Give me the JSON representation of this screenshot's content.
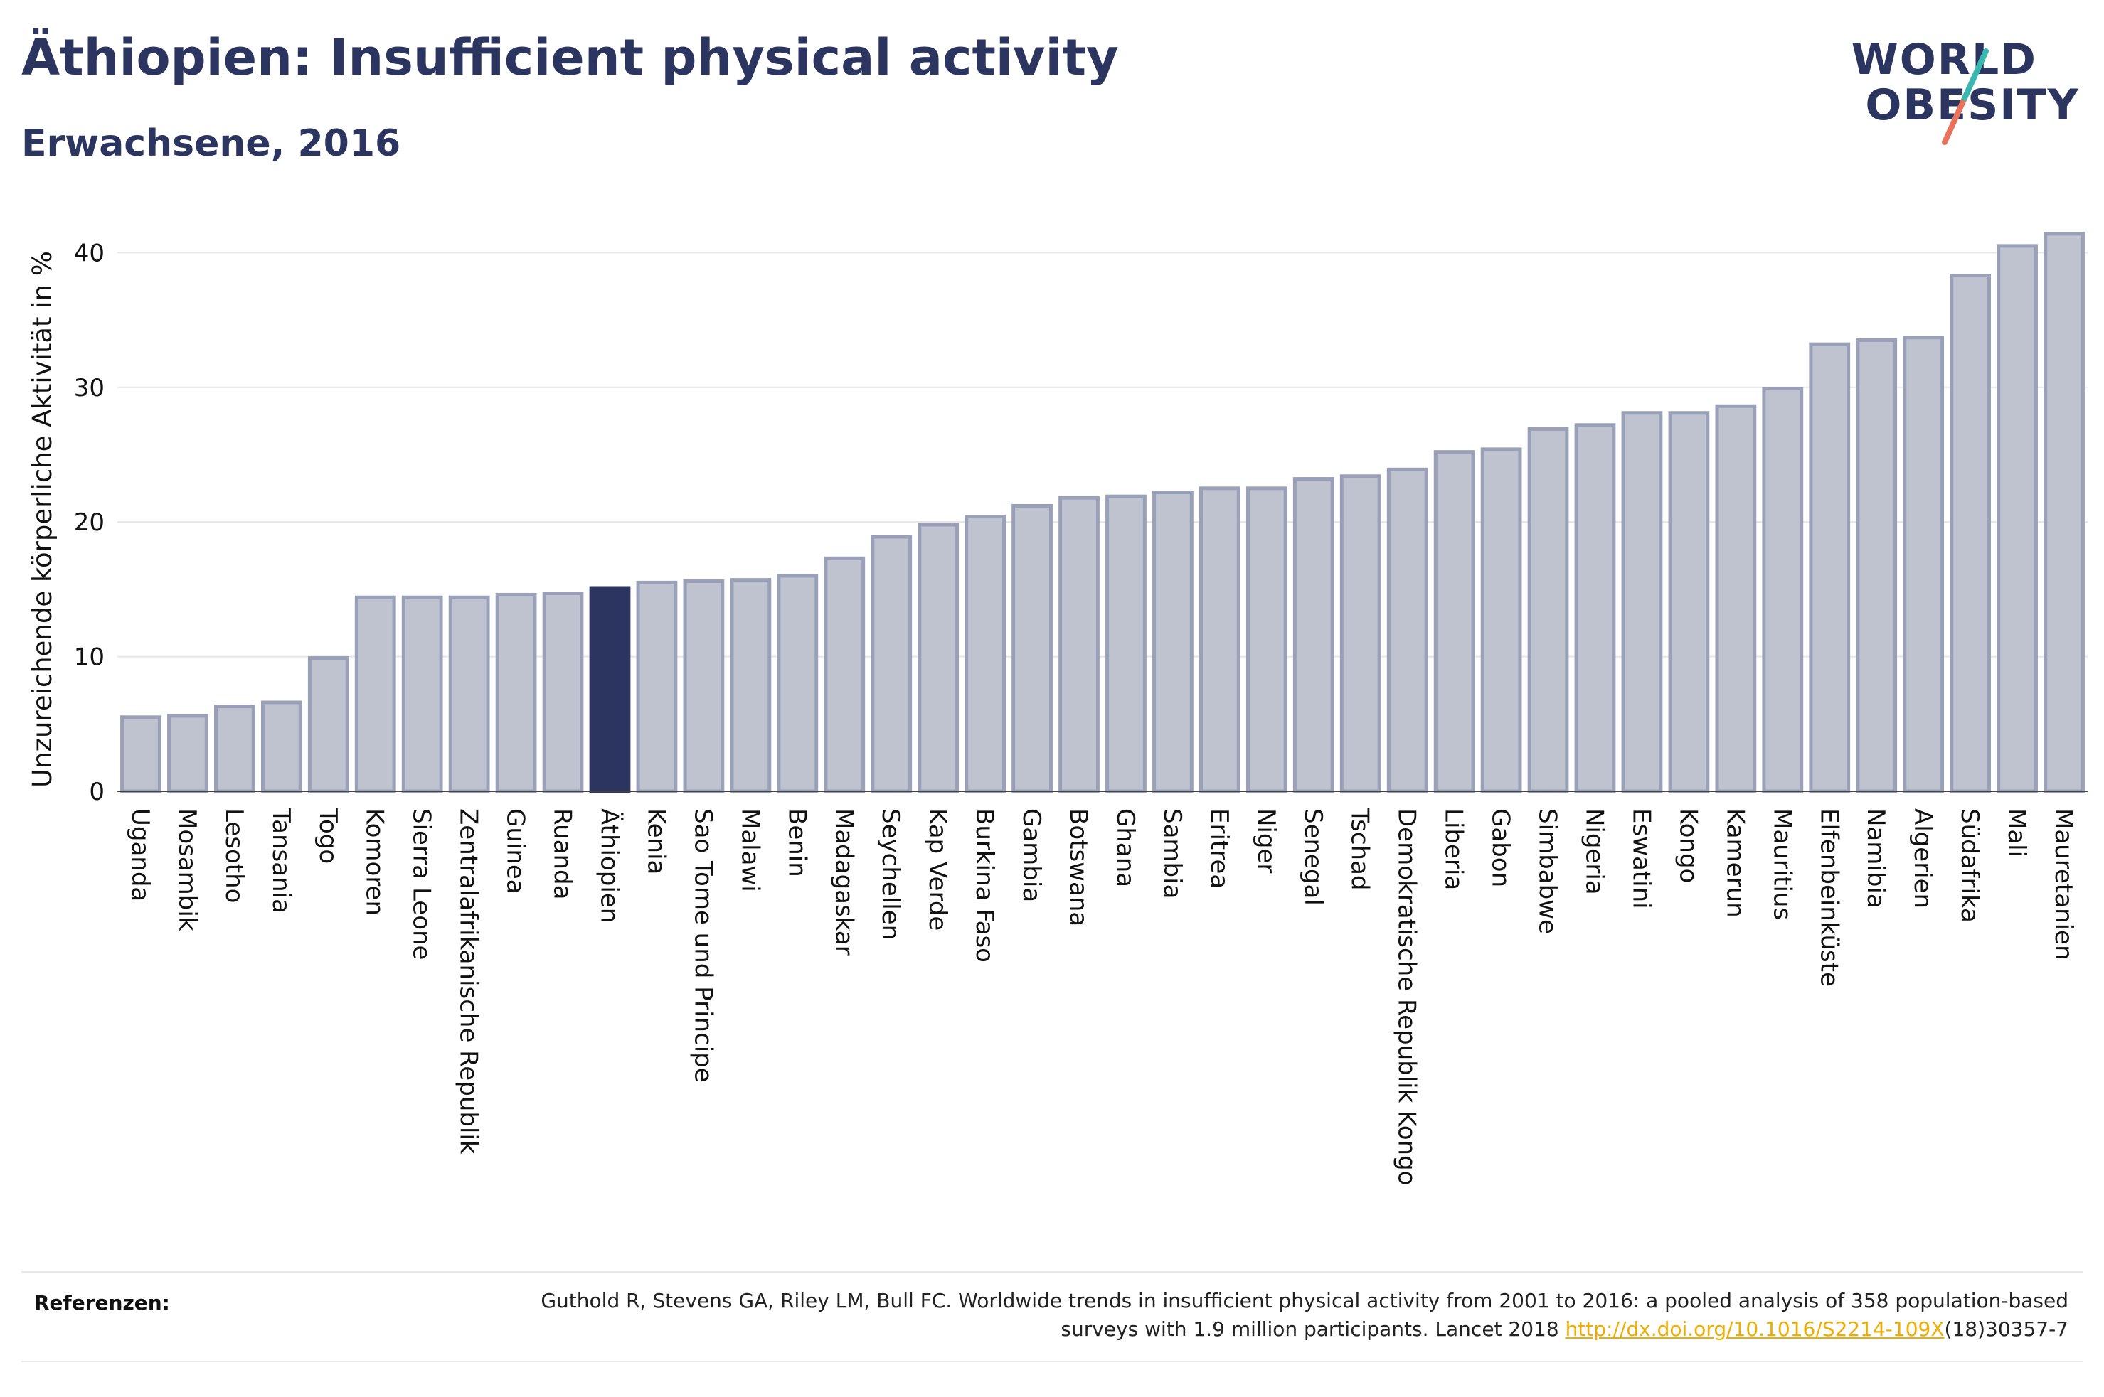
{
  "title": "Äthiopien: Insufficient physical activity",
  "subtitle": "Erwachsene, 2016",
  "logo": {
    "line1": "WORLD",
    "line2": "OBESITY"
  },
  "colors": {
    "highlight": "#2b3560",
    "bar": "#bfc3d0",
    "bar_edge": "#9aa0b8",
    "grid": "#e6e6ea",
    "link": "#f0ad00"
  },
  "chart_data": {
    "type": "bar",
    "ylabel": "Unzureichende körperliche Aktivität in %",
    "xlabel": "",
    "ylim": [
      0,
      42.5
    ],
    "yticks": [
      0,
      10,
      20,
      30,
      40
    ],
    "grid": true,
    "highlight": "Äthiopien",
    "categories": [
      "Uganda",
      "Mosambik",
      "Lesotho",
      "Tansania",
      "Togo",
      "Komoren",
      "Sierra Leone",
      "Zentralafrikanische Republik",
      "Guinea",
      "Ruanda",
      "Äthiopien",
      "Kenia",
      "Sao Tome und Principe",
      "Malawi",
      "Benin",
      "Madagaskar",
      "Seychellen",
      "Kap Verde",
      "Burkina Faso",
      "Gambia",
      "Botswana",
      "Ghana",
      "Sambia",
      "Eritrea",
      "Niger",
      "Senegal",
      "Tschad",
      "Demokratische Republik Kongo",
      "Liberia",
      "Gabon",
      "Simbabwe",
      "Nigeria",
      "Eswatini",
      "Kongo",
      "Kamerun",
      "Mauritius",
      "Elfenbeinküste",
      "Namibia",
      "Algerien",
      "Südafrika",
      "Mali",
      "Mauretanien"
    ],
    "values": [
      5.5,
      5.6,
      6.3,
      6.6,
      9.9,
      14.4,
      14.4,
      14.4,
      14.6,
      14.7,
      15.1,
      15.5,
      15.6,
      15.7,
      16.0,
      17.3,
      18.9,
      19.8,
      20.4,
      21.2,
      21.8,
      21.9,
      22.2,
      22.5,
      22.5,
      23.2,
      23.4,
      23.9,
      25.2,
      25.4,
      26.9,
      27.2,
      28.1,
      28.1,
      28.6,
      29.9,
      33.2,
      33.5,
      33.7,
      38.3,
      40.5,
      41.4
    ]
  },
  "reference": {
    "label": "Referenzen:",
    "text_before": "Guthold R, Stevens GA, Riley LM, Bull FC. Worldwide trends in insufficient physical activity from 2001 to 2016: a pooled analysis of 358 population-based surveys with 1.9 million participants. Lancet 2018 ",
    "link": "http://dx.doi.org/10.1016/S2214-109X",
    "text_after": "(18)30357-7"
  }
}
